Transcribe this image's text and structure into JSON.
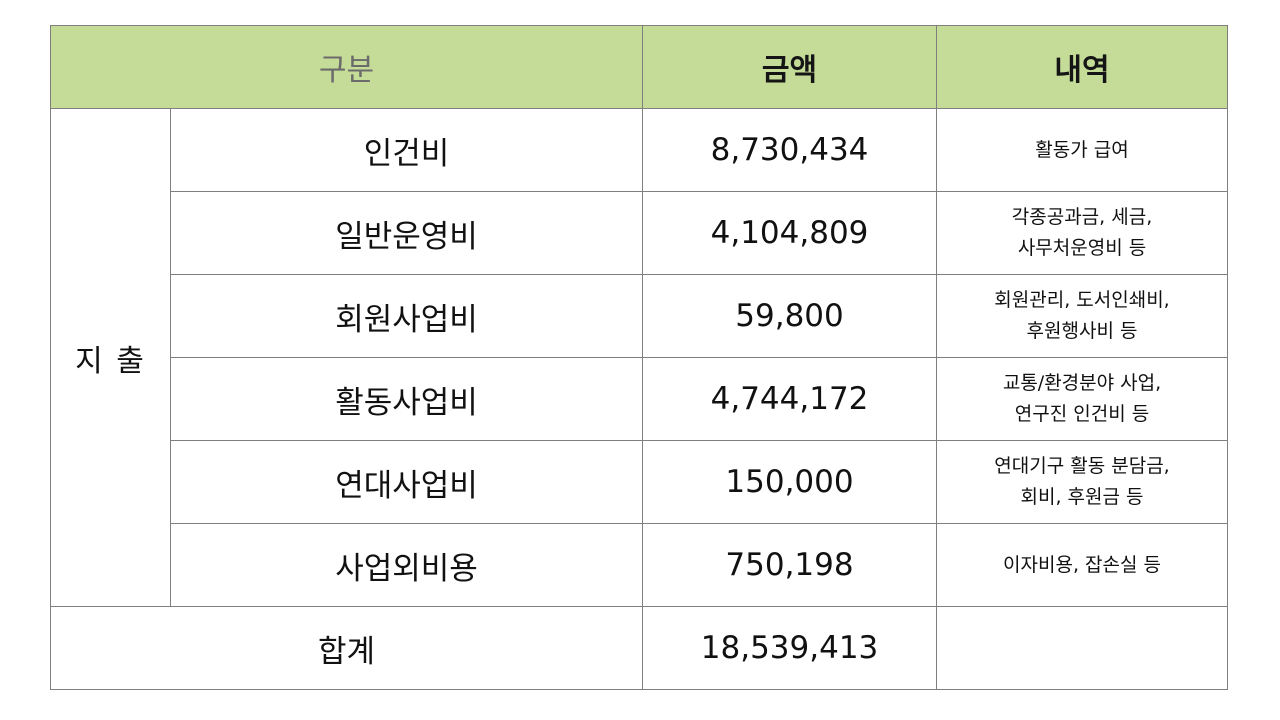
{
  "table": {
    "headers": {
      "category": "구분",
      "amount": "금액",
      "details": "내역"
    },
    "group_label": "지 출",
    "rows": [
      {
        "item": "인건비",
        "amount": "8,730,434",
        "details": [
          "활동가 급여"
        ]
      },
      {
        "item": "일반운영비",
        "amount": "4,104,809",
        "details": [
          "각종공과금, 세금,",
          "사무처운영비 등"
        ]
      },
      {
        "item": "회원사업비",
        "amount": "59,800",
        "details": [
          "회원관리, 도서인쇄비,",
          "후원행사비 등"
        ]
      },
      {
        "item": "활동사업비",
        "amount": "4,744,172",
        "details": [
          "교통/환경분야 사업,",
          "연구진 인건비 등"
        ]
      },
      {
        "item": "연대사업비",
        "amount": "150,000",
        "details": [
          "연대기구 활동 분담금,",
          "회비, 후원금 등"
        ]
      },
      {
        "item": "사업외비용",
        "amount": "750,198",
        "details": [
          "이자비용, 잡손실 등"
        ]
      }
    ],
    "total": {
      "label": "합계",
      "amount": "18,539,413",
      "details": ""
    }
  },
  "colors": {
    "header_background": "#c5dc98",
    "border": "#7f7f7f"
  }
}
